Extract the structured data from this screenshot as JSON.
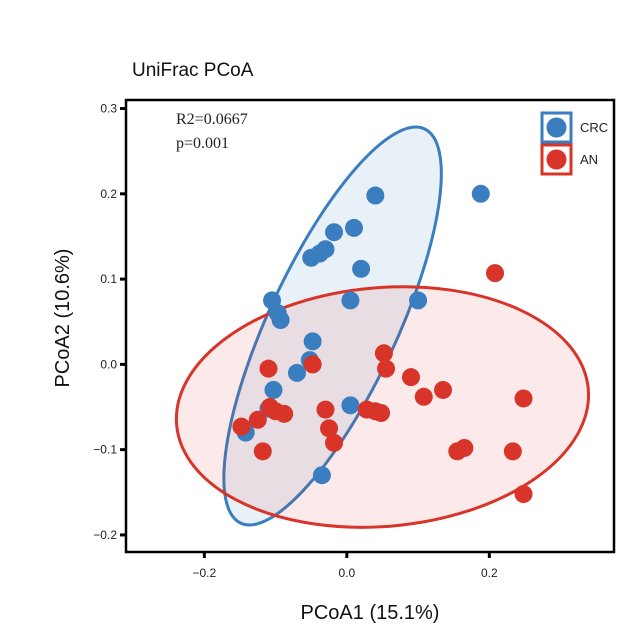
{
  "chart_data": {
    "type": "scatter",
    "title": "UniFrac PCoA",
    "xlabel": "PCoA1 (15.1%)",
    "ylabel": "PCoA2 (10.6%)",
    "xlim": [
      -0.31,
      0.375
    ],
    "ylim": [
      -0.22,
      0.31
    ],
    "xticks": [
      -0.2,
      0.0,
      0.2
    ],
    "xtick_labels": [
      "−0.2",
      "0.0",
      "0.2"
    ],
    "yticks": [
      0.3,
      0.2,
      0.1,
      0.0,
      -0.1,
      -0.2
    ],
    "ytick_labels": [
      "0.3",
      "0.2",
      "0.1",
      "0.0",
      "−0.1",
      "−0.2"
    ],
    "annotations": [
      "R2=0.0667",
      "p=0.001"
    ],
    "series": [
      {
        "name": "CRC",
        "color": "#3a7ebf",
        "ellipse": {
          "center": [
            -0.02,
            0.045
          ],
          "semi_axes": [
            0.09,
            0.255
          ],
          "angle_deg": 25
        },
        "points": [
          [
            0.04,
            0.198
          ],
          [
            0.188,
            0.2
          ],
          [
            0.01,
            0.16
          ],
          [
            -0.018,
            0.155
          ],
          [
            -0.03,
            0.135
          ],
          [
            -0.038,
            0.13
          ],
          [
            -0.05,
            0.125
          ],
          [
            0.02,
            0.112
          ],
          [
            0.005,
            0.075
          ],
          [
            0.1,
            0.075
          ],
          [
            -0.105,
            0.075
          ],
          [
            -0.097,
            0.06
          ],
          [
            -0.093,
            0.052
          ],
          [
            -0.048,
            0.027
          ],
          [
            -0.052,
            0.005
          ],
          [
            -0.07,
            -0.01
          ],
          [
            -0.103,
            -0.03
          ],
          [
            -0.11,
            -0.052
          ],
          [
            0.005,
            -0.048
          ],
          [
            -0.145,
            -0.075
          ],
          [
            -0.142,
            -0.08
          ],
          [
            -0.035,
            -0.13
          ]
        ]
      },
      {
        "name": "AN",
        "color": "#d8342a",
        "ellipse": {
          "center": [
            0.05,
            -0.05
          ],
          "semi_axes": [
            0.29,
            0.14
          ],
          "angle_deg": -5
        },
        "points": [
          [
            0.208,
            0.107
          ],
          [
            0.052,
            0.013
          ],
          [
            0.055,
            -0.005
          ],
          [
            -0.048,
            0.0
          ],
          [
            -0.11,
            -0.005
          ],
          [
            0.09,
            -0.015
          ],
          [
            0.135,
            -0.03
          ],
          [
            0.108,
            -0.038
          ],
          [
            0.248,
            -0.04
          ],
          [
            -0.108,
            -0.05
          ],
          [
            -0.1,
            -0.055
          ],
          [
            -0.088,
            -0.058
          ],
          [
            -0.03,
            -0.053
          ],
          [
            0.028,
            -0.053
          ],
          [
            0.04,
            -0.055
          ],
          [
            0.048,
            -0.057
          ],
          [
            -0.125,
            -0.065
          ],
          [
            -0.025,
            -0.075
          ],
          [
            -0.018,
            -0.092
          ],
          [
            -0.148,
            -0.073
          ],
          [
            -0.118,
            -0.102
          ],
          [
            0.165,
            -0.098
          ],
          [
            0.155,
            -0.102
          ],
          [
            0.233,
            -0.102
          ],
          [
            0.248,
            -0.152
          ]
        ]
      }
    ]
  }
}
